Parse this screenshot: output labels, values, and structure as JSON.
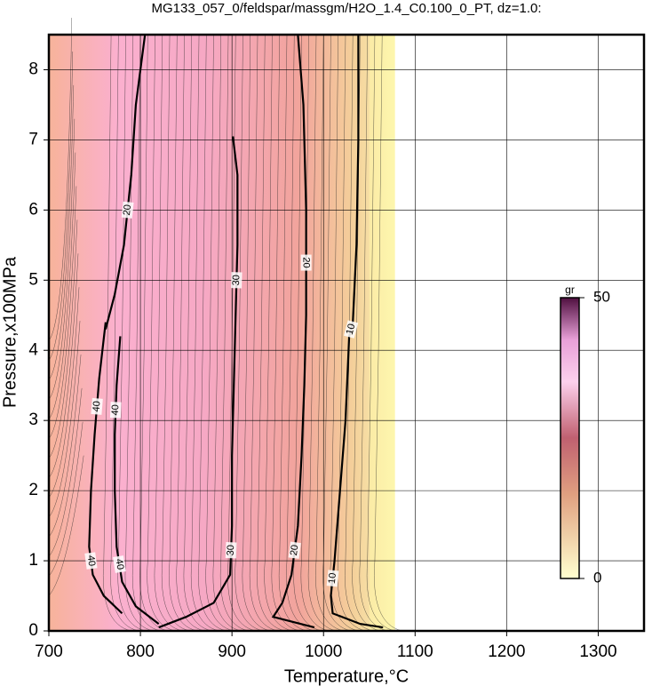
{
  "chart_data": {
    "type": "contour",
    "title": "MG133_057_0/feldspar/massgm/H2O_1.4_C0.100_0_PT, dz=1.0:",
    "x_label": "Temperature,°C",
    "y_label": "Pressure,x100MPa",
    "xlim": [
      700,
      1350
    ],
    "ylim": [
      0,
      8.5
    ],
    "xticks": [
      700,
      800,
      900,
      1000,
      1100,
      1200,
      1300
    ],
    "yticks": [
      0,
      1,
      2,
      3,
      4,
      5,
      6,
      7,
      8
    ],
    "grid": true,
    "contours": [
      {
        "level": 10,
        "T": [
          1038,
          1038,
          1036,
          1032,
          1028,
          1024,
          1018,
          1012,
          1008,
          1010,
          1040,
          1065
        ],
        "P": [
          8.5,
          7.0,
          5.5,
          4.4,
          4.2,
          3.0,
          2.0,
          1.0,
          0.5,
          0.25,
          0.1,
          0.05
        ]
      },
      {
        "level": 20,
        "T": [
          972,
          978,
          981,
          981,
          979,
          976,
          972,
          965,
          955,
          945,
          990
        ],
        "P": [
          8.5,
          7.5,
          6.0,
          4.5,
          3.5,
          2.5,
          1.5,
          0.8,
          0.4,
          0.2,
          0.05
        ]
      },
      {
        "level": 30,
        "T": [
          901,
          906,
          906,
          904,
          902,
          900,
          900,
          898,
          880,
          850,
          820
        ],
        "P": [
          7.05,
          6.5,
          5.5,
          4.5,
          3.5,
          2.5,
          1.5,
          0.8,
          0.4,
          0.2,
          0.05
        ]
      },
      {
        "level": 40,
        "T": [
          778,
          774,
          772,
          772,
          774,
          780,
          795,
          820
        ],
        "P": [
          4.2,
          3.5,
          2.8,
          2.0,
          1.2,
          0.7,
          0.35,
          0.1
        ]
      },
      {
        "level": 40,
        "T": [
          762,
          755,
          750,
          746,
          744,
          748,
          760,
          780
        ],
        "P": [
          4.4,
          3.6,
          2.8,
          2.0,
          1.2,
          0.8,
          0.5,
          0.25
        ]
      },
      {
        "level": 20,
        "T": [
          805,
          795,
          790,
          782,
          772,
          762
        ],
        "P": [
          8.5,
          7.5,
          6.5,
          5.5,
          4.8,
          4.3
        ]
      }
    ],
    "colorbar": {
      "label": "gr",
      "clim": [
        0,
        50
      ],
      "ticks": [
        0,
        50
      ]
    }
  }
}
